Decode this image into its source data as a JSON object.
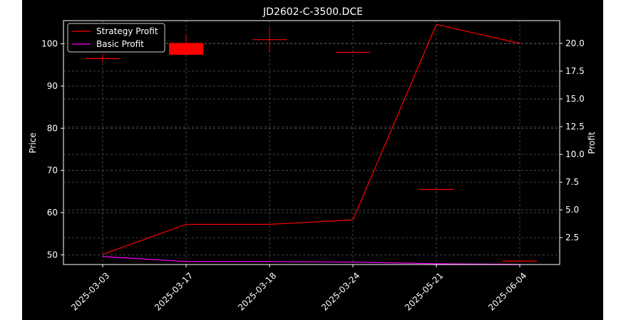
{
  "chart_data": {
    "type": "candlestick+line",
    "title": "JD2602-C-3500.DCE",
    "xlabel": "",
    "ylabel_left": "Price",
    "ylabel_right": "Profit",
    "categories": [
      "2025-03-03",
      "2025-03-17",
      "2025-03-18",
      "2025-03-24",
      "2025-05-21",
      "2025-06-04"
    ],
    "left_axis": {
      "ylim": [
        47.7,
        105.5
      ],
      "ticks": [
        50,
        60,
        70,
        80,
        90,
        100
      ]
    },
    "right_axis": {
      "ylim": [
        0.08,
        22.05
      ],
      "ticks": [
        2.5,
        5.0,
        7.5,
        10.0,
        12.5,
        15.0,
        17.5,
        20.0
      ]
    },
    "candles": [
      {
        "date": "2025-03-03",
        "open": 96.5,
        "close": 96.5,
        "high": 97.5,
        "low": 95.6
      },
      {
        "date": "2025-03-17",
        "open": 100.2,
        "close": 97.4,
        "high": 101.9,
        "low": 97.4
      },
      {
        "date": "2025-03-18",
        "open": 101.0,
        "close": 101.0,
        "high": 104.0,
        "low": 98.0
      },
      {
        "date": "2025-03-24",
        "open": 98.0,
        "close": 98.0,
        "high": 98.0,
        "low": 98.0
      },
      {
        "date": "2025-05-21",
        "open": 65.5,
        "close": 65.5,
        "high": 65.5,
        "low": 65.5
      },
      {
        "date": "2025-06-04",
        "open": 48.5,
        "close": 48.5,
        "high": 48.5,
        "low": 48.5
      }
    ],
    "series": [
      {
        "name": "Strategy Profit",
        "color": "#ff0000",
        "axis": "right",
        "values": [
          1.0,
          3.7,
          3.7,
          4.1,
          21.7,
          20.0
        ]
      },
      {
        "name": "Basic Profit",
        "color": "#ff00ff",
        "axis": "right",
        "values": [
          0.8,
          0.35,
          0.35,
          0.3,
          0.15,
          0.1
        ]
      }
    ],
    "candle_color": "#ff0000",
    "grid": true,
    "legend_position": "top-left"
  }
}
